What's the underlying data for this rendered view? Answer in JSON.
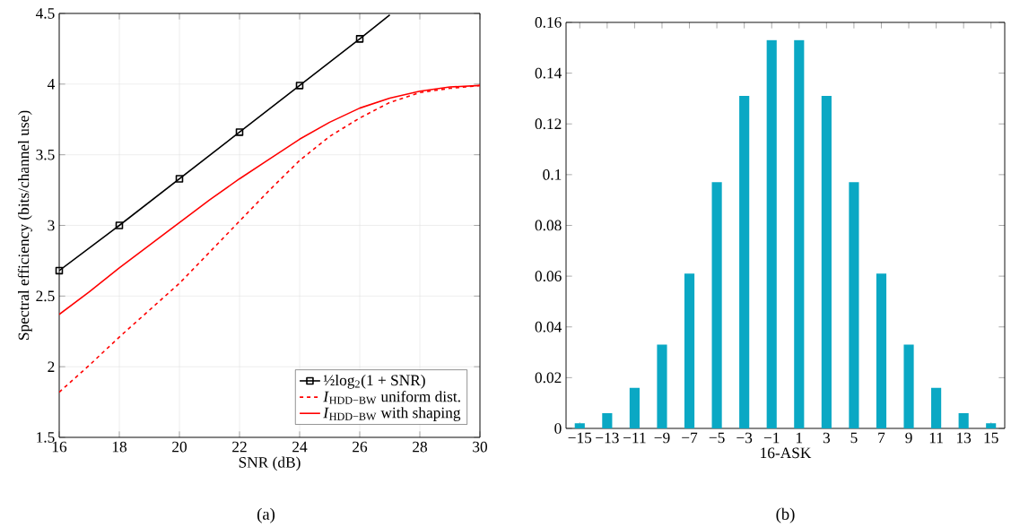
{
  "chart_data": [
    {
      "type": "line",
      "xlabel": "SNR (dB)",
      "ylabel": "Spectral efficiency (bits/channel use)",
      "xlim": [
        16,
        30
      ],
      "ylim": [
        1.5,
        4.5
      ],
      "xticks": [
        16,
        18,
        20,
        22,
        24,
        26,
        28,
        30
      ],
      "yticks": [
        1.5,
        2,
        2.5,
        3,
        3.5,
        4,
        4.5
      ],
      "grid": true,
      "legend": "bottom right",
      "annotations": [
        "(a)"
      ],
      "series": [
        {
          "name": "½log$_{2}$(1 + SNR)",
          "color": "#000000",
          "marker": "square",
          "line_style": "solid",
          "x": [
            16,
            18,
            20,
            22,
            24,
            26,
            27
          ],
          "values": [
            2.68,
            3.0,
            3.33,
            3.66,
            3.99,
            4.32,
            4.49
          ]
        },
        {
          "name": "*I*$_{HDD−BW}$ uniform dist.",
          "color": "#ff0000",
          "marker": "none",
          "line_style": "dashed",
          "x": [
            16,
            17,
            18,
            19,
            20,
            21,
            22,
            23,
            24,
            25,
            26,
            27,
            28,
            29,
            30
          ],
          "values": [
            1.82,
            2.01,
            2.21,
            2.4,
            2.59,
            2.81,
            3.03,
            3.25,
            3.46,
            3.63,
            3.76,
            3.87,
            3.94,
            3.97,
            3.99
          ]
        },
        {
          "name": "*I*$_{HDD−BW}$ with shaping",
          "color": "#ff0000",
          "marker": "none",
          "line_style": "solid",
          "x": [
            16,
            17,
            18,
            19,
            20,
            21,
            22,
            23,
            24,
            25,
            26,
            27,
            28,
            29,
            30
          ],
          "values": [
            2.37,
            2.53,
            2.7,
            2.86,
            3.02,
            3.18,
            3.33,
            3.47,
            3.61,
            3.73,
            3.83,
            3.9,
            3.95,
            3.98,
            3.99
          ]
        }
      ]
    },
    {
      "type": "bar",
      "xlabel": "16-ASK",
      "xlim": [
        -16,
        16
      ],
      "ylim": [
        0,
        0.16
      ],
      "color": "#0aa8c4",
      "annotations": [
        "(b)"
      ],
      "xticks": [
        {
          "value": -15,
          "label": "−15"
        },
        {
          "value": -13,
          "label": "−13"
        },
        {
          "value": -11,
          "label": "−11"
        },
        {
          "value": -9,
          "label": "−9"
        },
        {
          "value": -7,
          "label": "−7"
        },
        {
          "value": -5,
          "label": "−5"
        },
        {
          "value": -3,
          "label": "−3"
        },
        {
          "value": -1,
          "label": "−1"
        },
        1,
        3,
        5,
        7,
        9,
        11,
        13,
        15
      ],
      "yticks": [
        0,
        0.02,
        0.04,
        0.06,
        0.08,
        0.1,
        0.12,
        0.14,
        0.16
      ],
      "x": [
        -15,
        -13,
        -11,
        -9,
        -7,
        -5,
        -3,
        -1,
        1,
        3,
        5,
        7,
        9,
        11,
        13,
        15
      ],
      "values": [
        0.002,
        0.006,
        0.016,
        0.033,
        0.061,
        0.097,
        0.131,
        0.153,
        0.153,
        0.131,
        0.097,
        0.061,
        0.033,
        0.016,
        0.006,
        0.002
      ]
    }
  ]
}
